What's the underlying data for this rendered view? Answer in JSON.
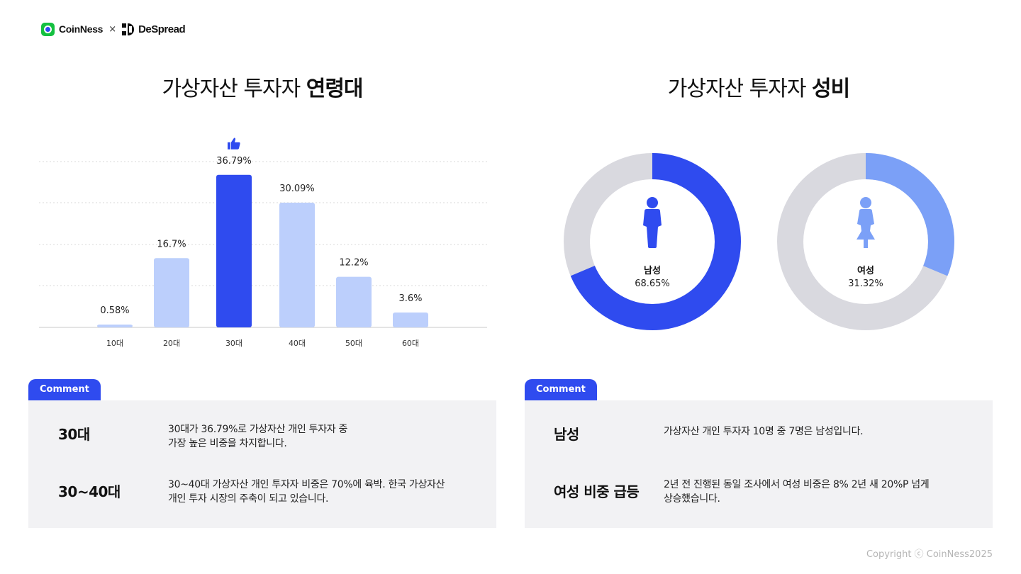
{
  "brand": {
    "left": "CoinNess",
    "separator": "×",
    "right": "DeSpread"
  },
  "left_panel": {
    "title_regular": "가상자산 투자자 ",
    "title_bold": "연령대"
  },
  "right_panel": {
    "title_regular": "가상자산 투자자 ",
    "title_bold": "성비"
  },
  "chart_data": [
    {
      "type": "bar",
      "categories": [
        "10대",
        "20대",
        "30대",
        "40대",
        "50대",
        "60대"
      ],
      "values": [
        0.58,
        16.7,
        36.79,
        30.09,
        12.2,
        3.6
      ],
      "value_labels": [
        "0.58%",
        "16.7%",
        "36.79%",
        "30.09%",
        "12.2%",
        "3.6%"
      ],
      "highlight_index": 2,
      "highlight_icon": "thumbs-up-icon",
      "colors": {
        "highlight": "#2f4bef",
        "normal": "#bccffc",
        "grid": "#d8d8d8",
        "axis": "#c8c8c8"
      },
      "ylim": [
        0,
        40
      ],
      "grid": true
    },
    {
      "type": "pie",
      "style": "donut",
      "segments": [
        {
          "label": "남성",
          "value": 68.65,
          "value_label": "68.65%",
          "color": "#2f4bef"
        },
        {
          "label": "여성",
          "value": 31.32,
          "value_label": "31.32%",
          "color": "#7ba0f7"
        }
      ],
      "track_color": "#d9d9df",
      "icons": [
        "male-person-icon",
        "female-person-icon"
      ]
    }
  ],
  "comments_left": {
    "tab": "Comment",
    "rows": [
      {
        "key": "30대",
        "value_line1": "30대가 36.79%로 가상자산 개인 투자자 중",
        "value_line2": "가장 높은 비중을 차지합니다."
      },
      {
        "key": "30~40대",
        "value_line1": "30~40대 가상자산 개인 투자자 비중은 70%에 육박. 한국 가상자산",
        "value_line2": "개인 투자 시장의 주축이 되고 있습니다."
      }
    ]
  },
  "comments_right": {
    "tab": "Comment",
    "rows": [
      {
        "key": "남성",
        "value_line1": "가상자산 개인 투자자 10명 중 7명은 남성입니다.",
        "value_line2": ""
      },
      {
        "key": "여성 비중 급등",
        "value_line1": "2년 전 진행된 동일 조사에서 여성 비중은 8% 2년 새 20%P 넘게",
        "value_line2": "상승했습니다."
      }
    ]
  },
  "copyright": "Copyright ⓒ CoinNess2025"
}
